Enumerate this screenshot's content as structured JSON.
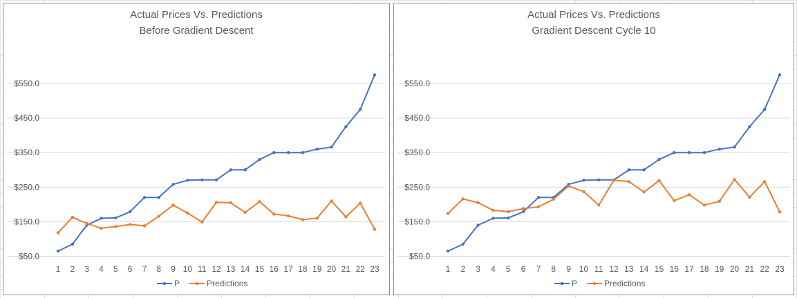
{
  "chart_data": [
    {
      "type": "line",
      "title": "Actual Prices Vs. Predictions",
      "subtitle": "Before Gradient Descent",
      "categories": [
        "1",
        "2",
        "3",
        "4",
        "5",
        "6",
        "7",
        "8",
        "9",
        "10",
        "11",
        "12",
        "13",
        "14",
        "15",
        "16",
        "17",
        "18",
        "19",
        "20",
        "21",
        "22",
        "23"
      ],
      "y_ticks": [
        "$50.0",
        "$150.0",
        "$250.0",
        "$350.0",
        "$450.0",
        "$550.0"
      ],
      "ylim": [
        50,
        575
      ],
      "grid": true,
      "legend_position": "bottom",
      "series": [
        {
          "name": "P",
          "color": "#4472c4",
          "values": [
            65,
            85,
            140,
            160,
            161,
            179,
            220,
            220,
            258,
            270,
            271,
            271,
            300,
            300,
            330,
            350,
            350,
            350,
            360,
            366,
            425,
            475,
            575
          ]
        },
        {
          "name": "Predictions",
          "color": "#ed7d31",
          "values": [
            118,
            163,
            145,
            131,
            136,
            142,
            138,
            166,
            198,
            175,
            149,
            206,
            205,
            177,
            208,
            172,
            167,
            156,
            160,
            210,
            164,
            204,
            128
          ]
        }
      ]
    },
    {
      "type": "line",
      "title": "Actual Prices Vs. Predictions",
      "subtitle": "Gradient Descent Cycle 10",
      "categories": [
        "1",
        "2",
        "3",
        "4",
        "5",
        "6",
        "7",
        "8",
        "9",
        "10",
        "11",
        "12",
        "13",
        "14",
        "15",
        "16",
        "17",
        "18",
        "19",
        "20",
        "21",
        "22",
        "23"
      ],
      "y_ticks": [
        "$50.0",
        "$150.0",
        "$250.0",
        "$350.0",
        "$450.0",
        "$550.0"
      ],
      "ylim": [
        50,
        575
      ],
      "grid": true,
      "legend_position": "bottom",
      "series": [
        {
          "name": "P",
          "color": "#4472c4",
          "values": [
            65,
            85,
            140,
            160,
            161,
            179,
            220,
            220,
            258,
            270,
            271,
            271,
            300,
            300,
            330,
            350,
            350,
            350,
            360,
            366,
            425,
            475,
            575
          ]
        },
        {
          "name": "Predictions",
          "color": "#ed7d31",
          "values": [
            174,
            216,
            205,
            183,
            179,
            188,
            193,
            215,
            253,
            237,
            198,
            270,
            266,
            236,
            269,
            211,
            228,
            198,
            209,
            272,
            221,
            266,
            178
          ]
        }
      ]
    }
  ]
}
